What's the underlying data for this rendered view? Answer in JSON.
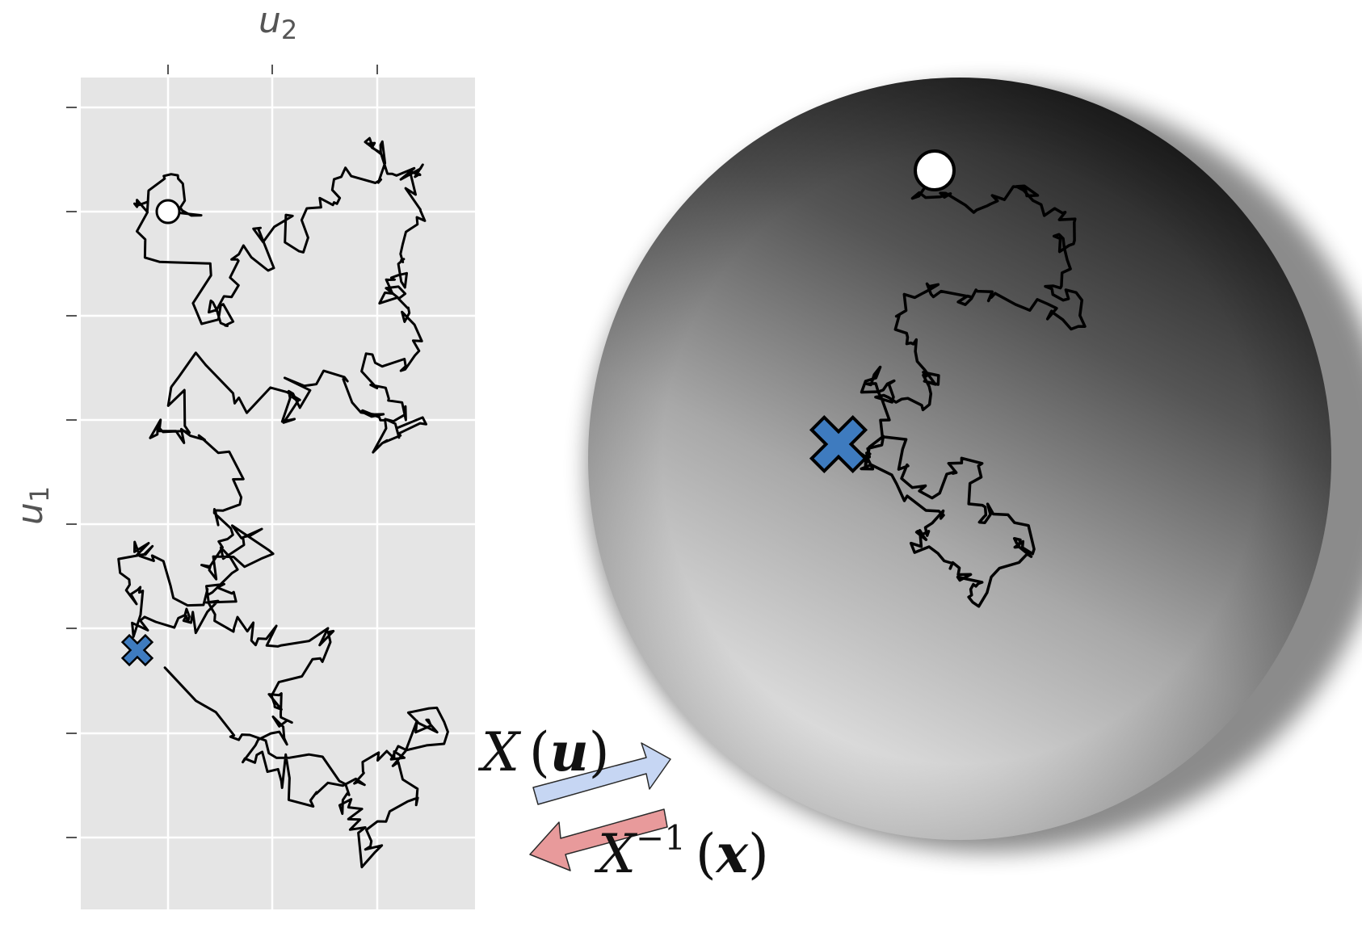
{
  "panel_left": {
    "xlabel": "u",
    "xlabel_sub": "2",
    "ylabel": "u",
    "ylabel_sub": "1",
    "background": "#e5e5e5",
    "grid_color": "#ffffff",
    "start_marker": "open-circle",
    "end_marker": "blue-cross"
  },
  "panel_right": {
    "shape": "sphere",
    "start_marker": "open-circle",
    "end_marker": "blue-cross"
  },
  "map_forward": {
    "func": "X",
    "arg": "u",
    "color": "#c6d6f3"
  },
  "map_inverse": {
    "func": "X",
    "exponent": "−1",
    "arg": "x",
    "color": "#e89a9b"
  },
  "colors": {
    "marker_blue": "#3e7bbf",
    "path": "#000000"
  }
}
